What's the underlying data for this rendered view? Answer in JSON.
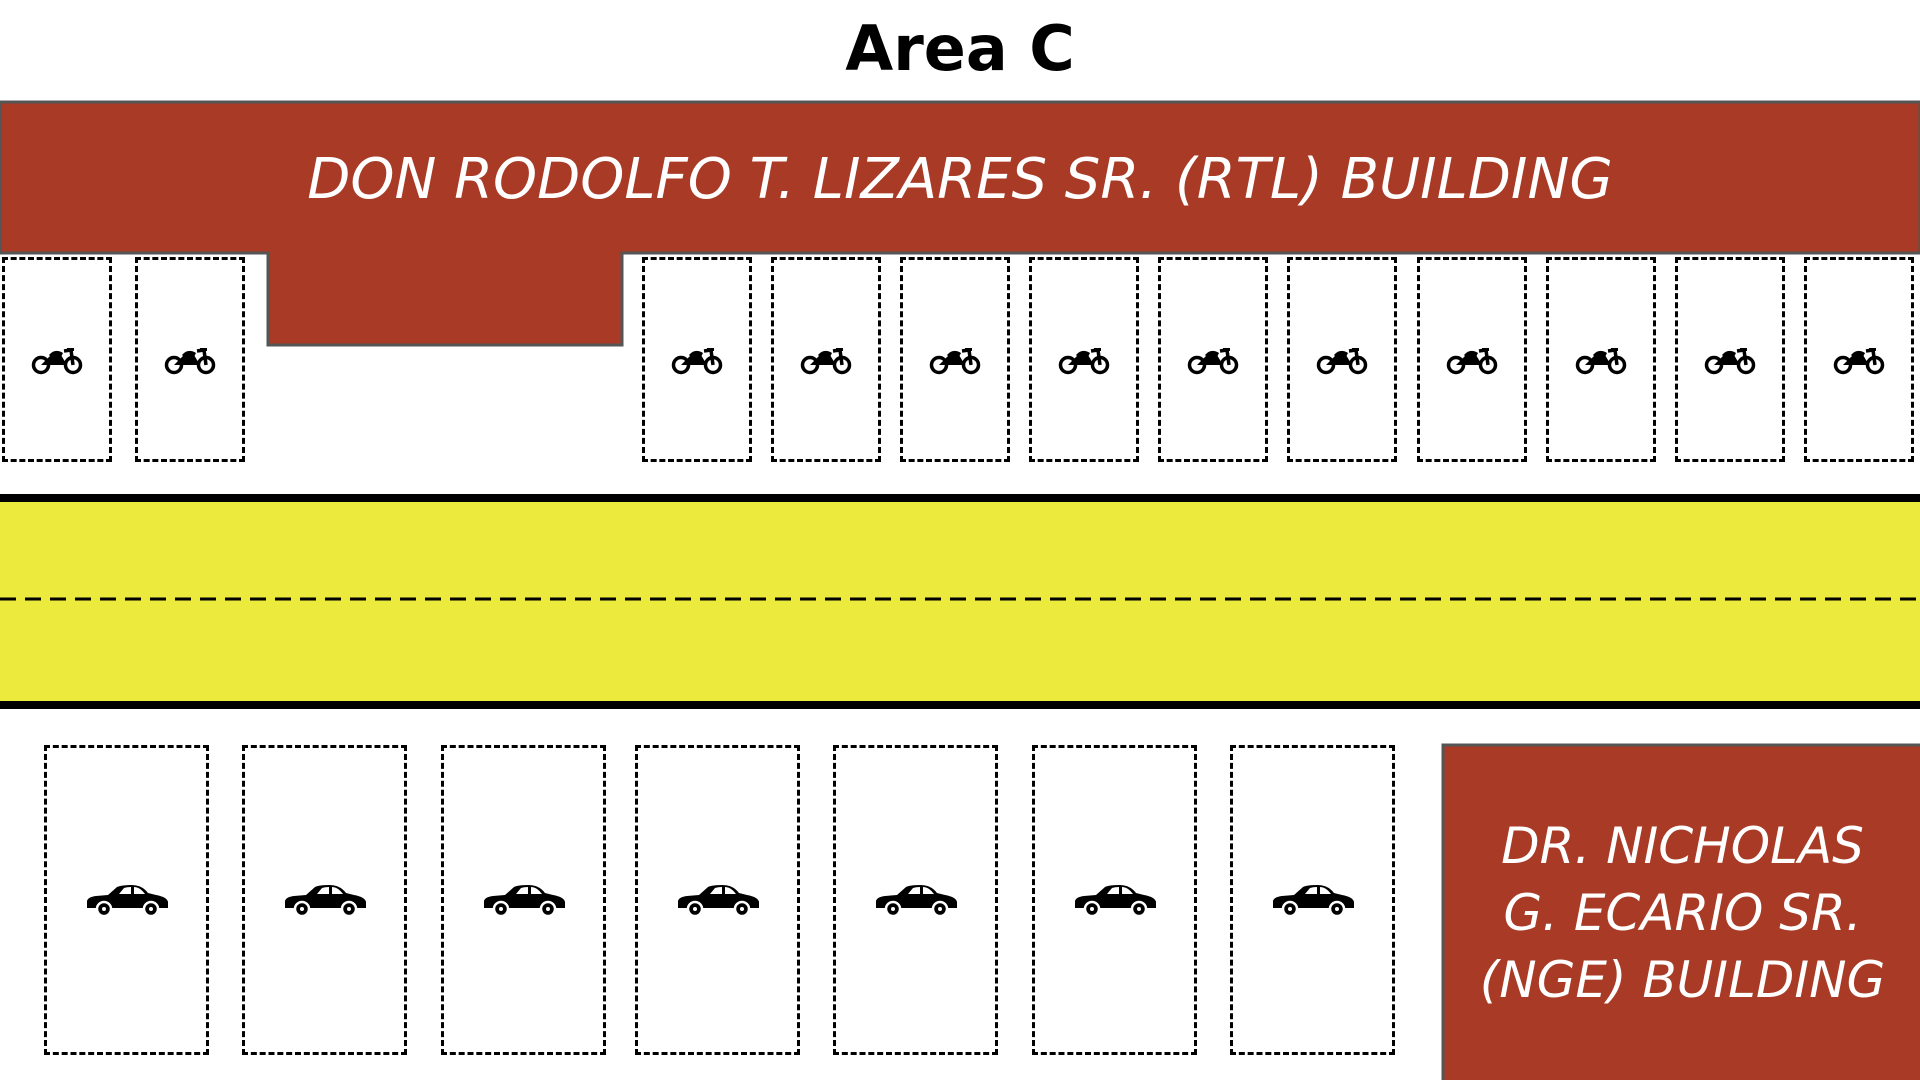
{
  "area_title": "Area C",
  "buildings": {
    "rtl": {
      "name": "DON RODOLFO T. LIZARES SR. (RTL) BUILDING"
    },
    "nge": {
      "name_lines": [
        "DR. NICHOLAS",
        "G. ECARIO SR.",
        "(NGE) BUILDING"
      ]
    }
  },
  "parking": {
    "motorcycle_spots": 12,
    "car_spots": 7,
    "motorcycle_icon": "motorcycle-icon",
    "car_icon": "car-icon"
  },
  "colors": {
    "building": "#A83A26",
    "building_border": "#555555",
    "road": "#ECEA3C",
    "road_edge": "#000000",
    "spot_border": "#000000"
  }
}
